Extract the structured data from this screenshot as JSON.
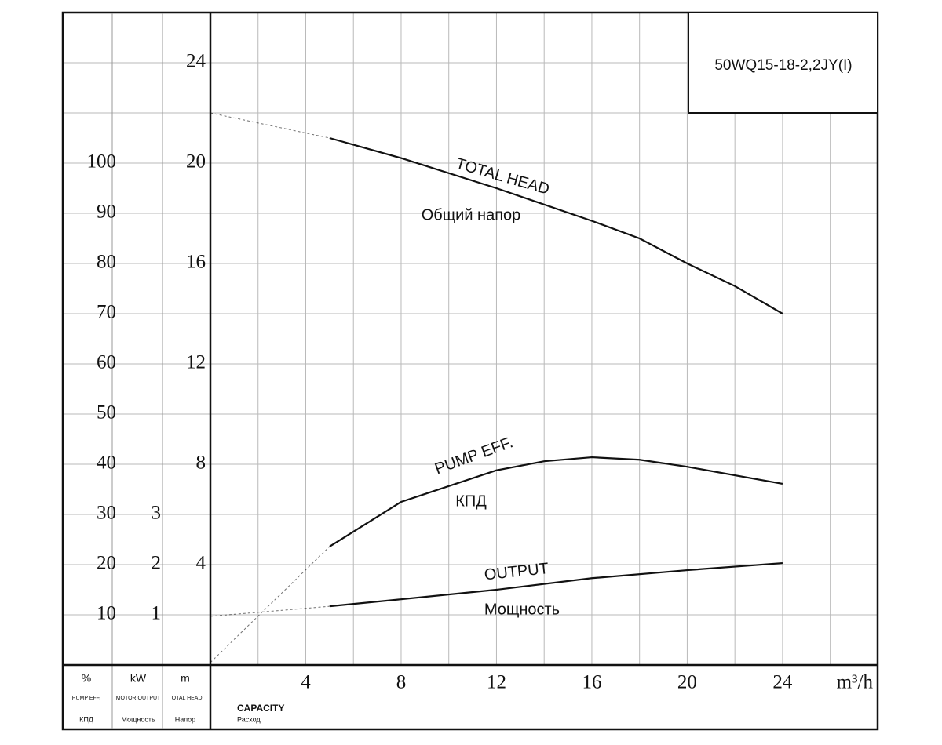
{
  "chart_data": {
    "type": "line",
    "model": "50WQ15-18-2,2JY(I)",
    "x_label": "CAPACITY",
    "x_label_ru": "Расход",
    "x_unit": "m³/h",
    "y_unit": "m",
    "y_label": "TOTAL HEAD",
    "y_label_ru": "Напор",
    "y2_unit": "%",
    "y2_label": "PUMP EFF.",
    "y2_label_ru": "КПД",
    "y3_unit": "kW",
    "y3_label": "MOTOR OUTPUT",
    "y3_label_ru": "Мощность",
    "xlim": [
      0,
      28
    ],
    "xticks": [
      4,
      8,
      12,
      16,
      20,
      24
    ],
    "xgrid": [
      2,
      4,
      6,
      8,
      10,
      12,
      14,
      16,
      18,
      20,
      22,
      24,
      26
    ],
    "ylim": [
      0,
      26
    ],
    "yticks": [
      4,
      8,
      12,
      16,
      20,
      24
    ],
    "ygrid": [
      2,
      4,
      6,
      8,
      10,
      12,
      14,
      16,
      18,
      20,
      22,
      24
    ],
    "y2lim": [
      0,
      130
    ],
    "y2ticks": [
      10,
      20,
      30,
      40,
      50,
      60,
      70,
      80,
      90,
      100
    ],
    "y3lim": [
      0,
      13
    ],
    "y3ticks": [
      1,
      2,
      3
    ],
    "dashed_below_x": 5,
    "series": [
      {
        "name": "TOTAL HEAD",
        "name_ru": "Общий напор",
        "color": "#111111",
        "axis": "y",
        "x": [
          0,
          5,
          8,
          12,
          16,
          18,
          20,
          22,
          24
        ],
        "values": [
          22,
          21,
          20.2,
          19,
          17.7,
          17,
          16,
          15.1,
          14
        ]
      },
      {
        "name": "PUMP EFF.",
        "name_ru": "КПД",
        "color": "#111111",
        "axis": "y2",
        "x": [
          0,
          5,
          8,
          12,
          14,
          16,
          18,
          20,
          24
        ],
        "values": [
          0.5,
          23.6,
          32.5,
          38.8,
          40.6,
          41.4,
          40.9,
          39.5,
          36.1
        ]
      },
      {
        "name": "OUTPUT",
        "name_ru": "Мощность",
        "color": "#111111",
        "axis": "y3",
        "x": [
          0,
          5,
          8,
          12,
          16,
          20,
          24
        ],
        "values": [
          0.97,
          1.17,
          1.31,
          1.5,
          1.73,
          1.89,
          2.03
        ]
      }
    ]
  }
}
